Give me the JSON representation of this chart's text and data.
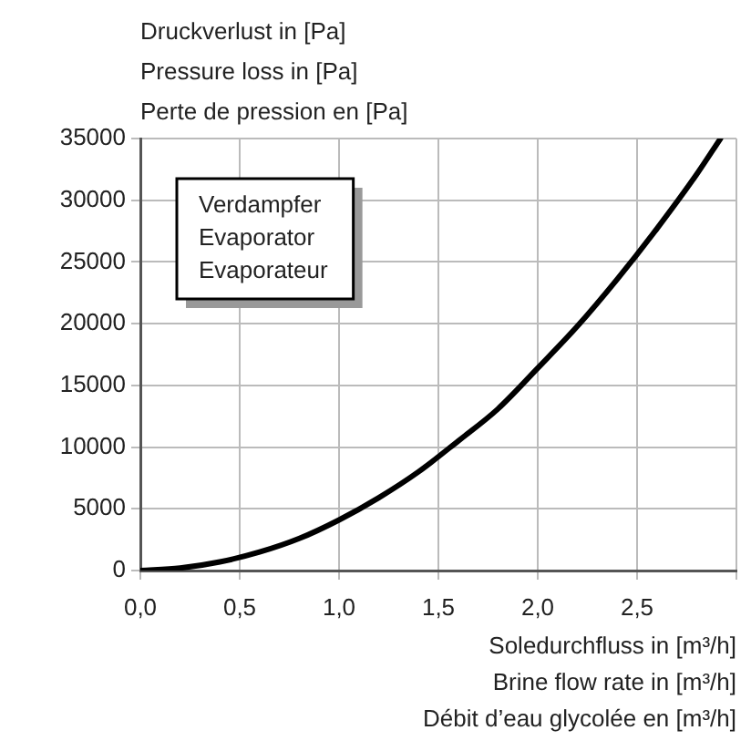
{
  "chart_data": {
    "type": "line",
    "ylabel": "Druckverlust in [Pa]\nPressure loss in [Pa]\nPerte de pression en [Pa]",
    "xlabel": "Soledurchfluss in [m³/h]\nBrine flow rate in [m³/h]\nDébit d’eau glycolée en [m³/h]",
    "annotations": [
      "Verdampfer\nEvaporator\nEvaporateur"
    ],
    "series": [
      {
        "color": "#000000",
        "x": [
          0,
          0.2,
          0.4,
          0.6,
          0.8,
          1.0,
          1.2,
          1.4,
          1.6,
          1.8,
          2.0,
          2.2,
          2.4,
          2.6,
          2.8,
          2.92
        ],
        "values": [
          0,
          200,
          700,
          1500,
          2600,
          4100,
          5900,
          8000,
          10500,
          13100,
          16400,
          19800,
          23600,
          27700,
          32100,
          35000
        ]
      }
    ],
    "xlim": [
      0,
      3
    ],
    "xticks": [
      {
        "value": 0,
        "label": "0,0"
      },
      {
        "value": 0.5,
        "label": "0,5"
      },
      {
        "value": 1,
        "label": "1,0"
      },
      {
        "value": 1.5,
        "label": "1,5"
      },
      {
        "value": 2,
        "label": "2,0"
      },
      {
        "value": 2.5,
        "label": "2,5"
      },
      {
        "value": 3,
        "label": null
      }
    ],
    "ylim": [
      0,
      35000
    ],
    "yticks": [
      0,
      5000,
      10000,
      15000,
      20000,
      25000,
      30000,
      35000
    ],
    "grid": true,
    "legend": false,
    "marker": "none",
    "line_style": "solid"
  }
}
